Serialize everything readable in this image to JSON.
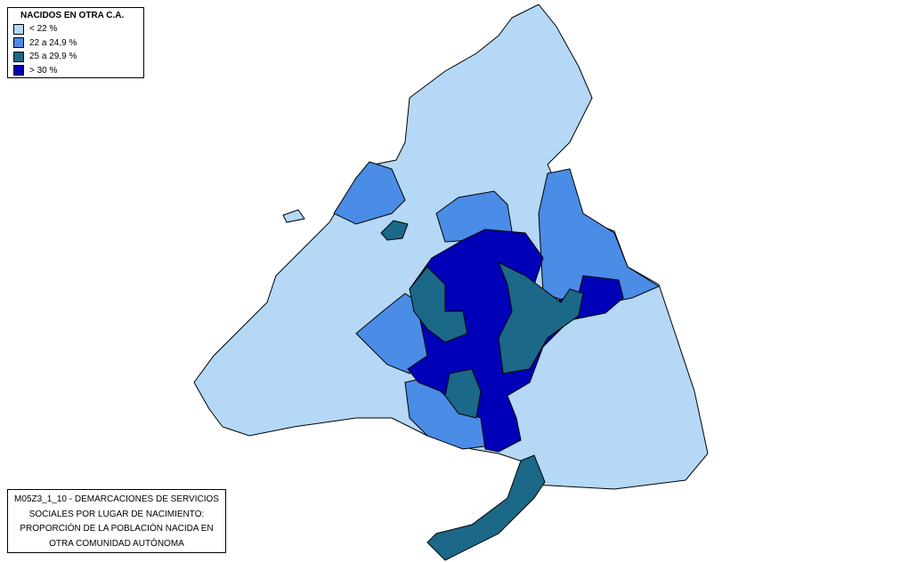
{
  "legend": {
    "title": "NACIDOS EN OTRA C.A.",
    "items": [
      {
        "label": "< 22 %",
        "color": "#b4d8f5"
      },
      {
        "label": "22 a 24,9 %",
        "color": "#4a8ce6"
      },
      {
        "label": "25 a 29,9 %",
        "color": "#1b6888"
      },
      {
        "label": "> 30 %",
        "color": "#0000b8"
      }
    ]
  },
  "caption": {
    "lines": [
      "M05Z3_1_10 - DEMARCACIONES DE SERVICIOS",
      "SOCIALES POR LUGAR DE NACIMIENTO:",
      "PROPORCIÓN DE LA POBLACIÓN NACIDA EN",
      "OTRA COMUNIDAD AUTÓNOMA"
    ]
  }
}
